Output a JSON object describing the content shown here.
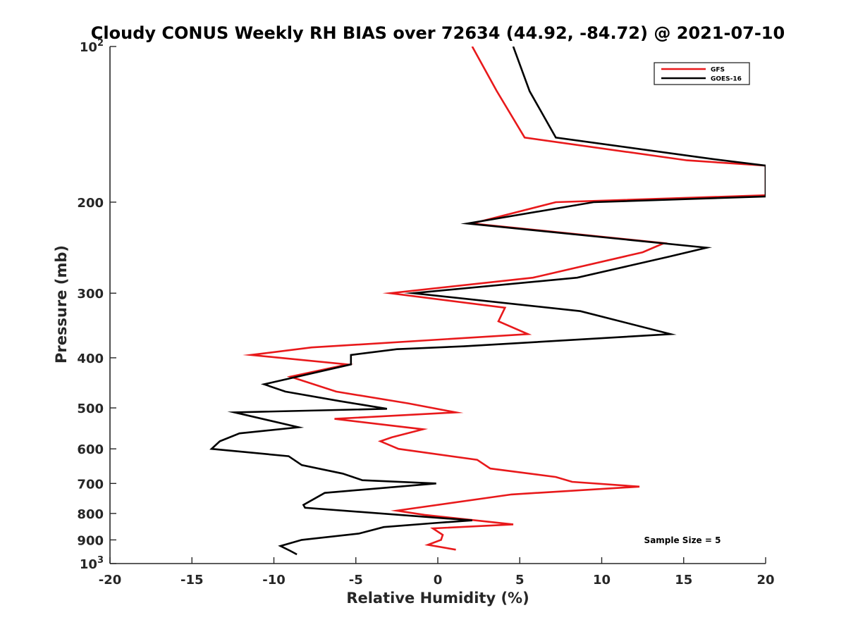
{
  "chart_data": {
    "type": "line",
    "title": "Cloudy CONUS Weekly RH BIAS over 72634 (44.92, -84.72) @ 2021-07-10",
    "xlabel": "Relative Humidity (%)",
    "ylabel": "Pressure (mb)",
    "xlim": [
      -20,
      20
    ],
    "ylim": [
      100,
      1000
    ],
    "y_scale": "log",
    "y_reversed": true,
    "x_ticks": [
      "-20",
      "-15",
      "-10",
      "-5",
      "0",
      "5",
      "10",
      "15",
      "20"
    ],
    "y_ticks": [
      {
        "value": 100,
        "base": "10",
        "exp": "2"
      },
      {
        "value": 200,
        "label": "200"
      },
      {
        "value": 300,
        "label": "300"
      },
      {
        "value": 400,
        "label": "400"
      },
      {
        "value": 500,
        "label": "500"
      },
      {
        "value": 600,
        "label": "600"
      },
      {
        "value": 700,
        "label": "700"
      },
      {
        "value": 800,
        "label": "800"
      },
      {
        "value": 900,
        "label": "900"
      },
      {
        "value": 1000,
        "base": "10",
        "exp": "3"
      }
    ],
    "grid": false,
    "legend_position": "top-right",
    "annotation": "Sample Size = 5",
    "series": [
      {
        "name": "GFS",
        "color": "#e8191b",
        "x": [
          2.1,
          3.6,
          5.3,
          15.2,
          20.0,
          20.0,
          7.2,
          2.1,
          13.8,
          12.5,
          5.8,
          -2.9,
          4.1,
          3.7,
          5.5,
          -7.7,
          -11.4,
          -5.5,
          -9.0,
          -6.2,
          -1.8,
          1.1,
          -6.3,
          -0.9,
          -2.8,
          -3.5,
          -2.4,
          2.4,
          3.2,
          7.2,
          8.2,
          12.3,
          4.5,
          -2.5,
          -0.8,
          4.6,
          -0.3,
          0.3,
          0.2,
          -0.6,
          1.1
        ],
        "y": [
          100,
          122,
          150,
          166,
          170,
          194,
          200,
          220,
          240,
          250,
          280,
          300,
          320,
          340,
          360,
          382,
          395,
          412,
          435,
          465,
          490,
          510,
          525,
          550,
          570,
          580,
          600,
          630,
          655,
          680,
          695,
          710,
          735,
          790,
          805,
          840,
          855,
          880,
          900,
          920,
          940
        ]
      },
      {
        "name": "GOES-16",
        "color": "#000000",
        "x": [
          4.6,
          5.6,
          7.2,
          16.7,
          20.0,
          20.0,
          9.5,
          1.8,
          16.4,
          14.1,
          8.5,
          -1.5,
          8.7,
          14.2,
          1.6,
          -2.5,
          -5.3,
          -5.3,
          -10.6,
          -9.3,
          -6.0,
          -3.1,
          -12.4,
          -8.5,
          -12.1,
          -13.3,
          -13.8,
          -9.1,
          -8.3,
          -5.8,
          -4.6,
          -0.1,
          -6.9,
          -8.2,
          -8.1,
          2.1,
          -0.2,
          -3.3,
          -4.8,
          -8.3,
          -9.6,
          -9.0,
          -8.6
        ],
        "y": [
          100,
          122,
          150,
          165,
          170,
          195,
          200,
          220,
          245,
          255,
          280,
          300,
          325,
          360,
          380,
          385,
          395,
          412,
          450,
          465,
          485,
          502,
          510,
          545,
          560,
          580,
          600,
          620,
          645,
          670,
          690,
          700,
          730,
          770,
          780,
          825,
          835,
          850,
          875,
          900,
          925,
          945,
          960
        ]
      }
    ]
  }
}
